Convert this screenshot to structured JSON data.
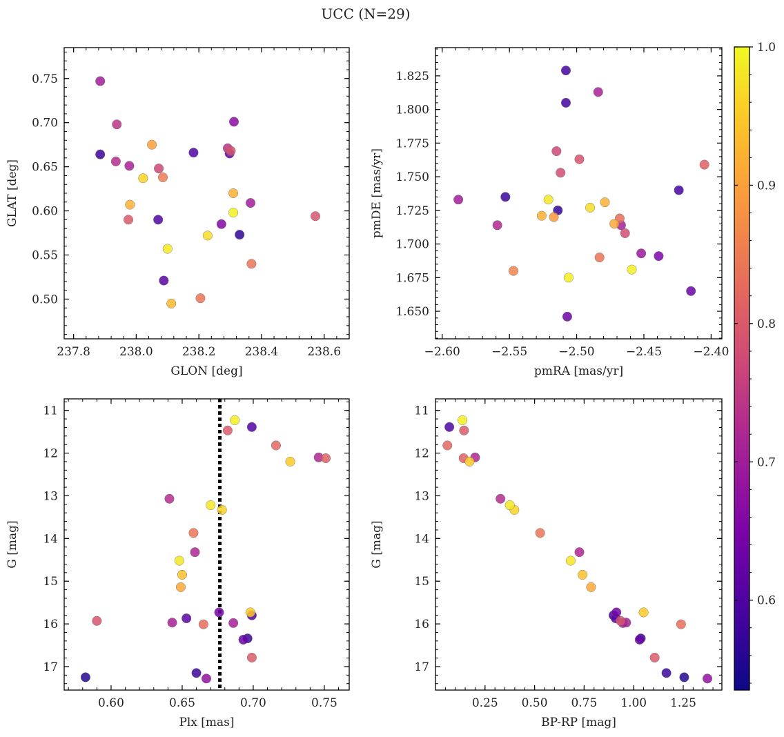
{
  "figure": {
    "title": "UCC (N=29)"
  },
  "chart_data": [
    {
      "id": "glon-glat",
      "type": "scatter",
      "xlabel": "GLON [deg]",
      "ylabel": "GLAT [deg]",
      "xlim": [
        237.77,
        238.68
      ],
      "ylim": [
        0.455,
        0.785
      ],
      "xticks": [
        237.8,
        238.0,
        238.2,
        238.4,
        238.6
      ],
      "xticklabels": [
        "237.8",
        "238.0",
        "238.2",
        "238.4",
        "238.6"
      ],
      "yticks": [
        0.5,
        0.55,
        0.6,
        0.65,
        0.7,
        0.75
      ],
      "yticklabels": [
        "0.50",
        "0.55",
        "0.60",
        "0.65",
        "0.70",
        "0.75"
      ],
      "y_inverted": false,
      "points": [
        {
          "x": 237.885,
          "y": 0.747,
          "c": 0.7
        },
        {
          "x": 237.885,
          "y": 0.664,
          "c": 0.58
        },
        {
          "x": 237.938,
          "y": 0.698,
          "c": 0.74
        },
        {
          "x": 237.935,
          "y": 0.656,
          "c": 0.73
        },
        {
          "x": 237.978,
          "y": 0.651,
          "c": 0.71
        },
        {
          "x": 237.975,
          "y": 0.59,
          "c": 0.8
        },
        {
          "x": 237.98,
          "y": 0.607,
          "c": 0.92
        },
        {
          "x": 238.022,
          "y": 0.637,
          "c": 0.96
        },
        {
          "x": 238.05,
          "y": 0.675,
          "c": 0.9
        },
        {
          "x": 238.072,
          "y": 0.648,
          "c": 0.77
        },
        {
          "x": 238.085,
          "y": 0.638,
          "c": 0.85
        },
        {
          "x": 238.07,
          "y": 0.59,
          "c": 0.6
        },
        {
          "x": 238.1,
          "y": 0.557,
          "c": 0.98
        },
        {
          "x": 238.088,
          "y": 0.521,
          "c": 0.61
        },
        {
          "x": 238.112,
          "y": 0.495,
          "c": 0.93
        },
        {
          "x": 238.183,
          "y": 0.666,
          "c": 0.6
        },
        {
          "x": 238.205,
          "y": 0.501,
          "c": 0.84
        },
        {
          "x": 238.228,
          "y": 0.572,
          "c": 0.97
        },
        {
          "x": 238.272,
          "y": 0.585,
          "c": 0.66
        },
        {
          "x": 238.292,
          "y": 0.671,
          "c": 0.74
        },
        {
          "x": 238.298,
          "y": 0.665,
          "c": 0.62
        },
        {
          "x": 238.302,
          "y": 0.668,
          "c": 0.79
        },
        {
          "x": 238.312,
          "y": 0.701,
          "c": 0.67
        },
        {
          "x": 238.31,
          "y": 0.62,
          "c": 0.92
        },
        {
          "x": 238.31,
          "y": 0.598,
          "c": 0.99
        },
        {
          "x": 238.33,
          "y": 0.573,
          "c": 0.57
        },
        {
          "x": 238.365,
          "y": 0.609,
          "c": 0.7
        },
        {
          "x": 238.368,
          "y": 0.54,
          "c": 0.84
        },
        {
          "x": 238.572,
          "y": 0.594,
          "c": 0.79
        }
      ]
    },
    {
      "id": "pmra-pmde",
      "type": "scatter",
      "xlabel": "pmRA [mas/yr]",
      "ylabel": "pmDE [mas/yr]",
      "xlim": [
        -2.605,
        -2.392
      ],
      "ylim": [
        1.6295,
        1.846
      ],
      "xticks": [
        -2.6,
        -2.55,
        -2.5,
        -2.45,
        -2.4
      ],
      "xticklabels": [
        "−2.60",
        "−2.55",
        "−2.50",
        "−2.45",
        "−2.40"
      ],
      "yticks": [
        1.65,
        1.675,
        1.7,
        1.725,
        1.75,
        1.775,
        1.8,
        1.825
      ],
      "yticklabels": [
        "1.650",
        "1.675",
        "1.700",
        "1.725",
        "1.750",
        "1.775",
        "1.800",
        "1.825"
      ],
      "y_inverted": false,
      "points": [
        {
          "x": -2.508,
          "y": 1.829,
          "c": 0.59
        },
        {
          "x": -2.484,
          "y": 1.813,
          "c": 0.71
        },
        {
          "x": -2.508,
          "y": 1.805,
          "c": 0.59
        },
        {
          "x": -2.515,
          "y": 1.769,
          "c": 0.77
        },
        {
          "x": -2.498,
          "y": 1.763,
          "c": 0.79
        },
        {
          "x": -2.405,
          "y": 1.759,
          "c": 0.81
        },
        {
          "x": -2.512,
          "y": 1.753,
          "c": 0.78
        },
        {
          "x": -2.424,
          "y": 1.74,
          "c": 0.59
        },
        {
          "x": -2.553,
          "y": 1.735,
          "c": 0.58
        },
        {
          "x": -2.588,
          "y": 1.733,
          "c": 0.7
        },
        {
          "x": -2.521,
          "y": 1.733,
          "c": 0.98
        },
        {
          "x": -2.479,
          "y": 1.731,
          "c": 0.92
        },
        {
          "x": -2.49,
          "y": 1.727,
          "c": 0.97
        },
        {
          "x": -2.514,
          "y": 1.725,
          "c": 0.57
        },
        {
          "x": -2.526,
          "y": 1.721,
          "c": 0.92
        },
        {
          "x": -2.517,
          "y": 1.72,
          "c": 0.89
        },
        {
          "x": -2.468,
          "y": 1.719,
          "c": 0.83
        },
        {
          "x": -2.472,
          "y": 1.715,
          "c": 0.91
        },
        {
          "x": -2.559,
          "y": 1.714,
          "c": 0.72
        },
        {
          "x": -2.467,
          "y": 1.714,
          "c": 0.71
        },
        {
          "x": -2.464,
          "y": 1.708,
          "c": 0.78
        },
        {
          "x": -2.452,
          "y": 1.693,
          "c": 0.69
        },
        {
          "x": -2.439,
          "y": 1.691,
          "c": 0.65
        },
        {
          "x": -2.483,
          "y": 1.69,
          "c": 0.84
        },
        {
          "x": -2.459,
          "y": 1.681,
          "c": 0.99
        },
        {
          "x": -2.547,
          "y": 1.68,
          "c": 0.86
        },
        {
          "x": -2.506,
          "y": 1.675,
          "c": 0.99
        },
        {
          "x": -2.415,
          "y": 1.665,
          "c": 0.63
        },
        {
          "x": -2.507,
          "y": 1.646,
          "c": 0.63
        }
      ]
    },
    {
      "id": "plx-g",
      "type": "scatter",
      "xlabel": "Plx [mas]",
      "ylabel": "G [mag]",
      "xlim": [
        0.567,
        0.7675
      ],
      "ylim": [
        17.55,
        10.73
      ],
      "xticks": [
        0.6,
        0.65,
        0.7,
        0.75
      ],
      "xticklabels": [
        "0.60",
        "0.65",
        "0.70",
        "0.75"
      ],
      "yticks": [
        11,
        12,
        13,
        14,
        15,
        16,
        17
      ],
      "yticklabels": [
        "11",
        "12",
        "13",
        "14",
        "15",
        "16",
        "17"
      ],
      "y_inverted": true,
      "vline": 0.6765,
      "points": [
        {
          "x": 0.687,
          "y": 11.23,
          "c": 0.99
        },
        {
          "x": 0.699,
          "y": 11.39,
          "c": 0.6
        },
        {
          "x": 0.682,
          "y": 11.47,
          "c": 0.8
        },
        {
          "x": 0.716,
          "y": 11.82,
          "c": 0.82
        },
        {
          "x": 0.746,
          "y": 12.1,
          "c": 0.72
        },
        {
          "x": 0.751,
          "y": 12.12,
          "c": 0.81
        },
        {
          "x": 0.726,
          "y": 12.2,
          "c": 0.95
        },
        {
          "x": 0.641,
          "y": 13.07,
          "c": 0.73
        },
        {
          "x": 0.67,
          "y": 13.22,
          "c": 0.98
        },
        {
          "x": 0.678,
          "y": 13.33,
          "c": 0.96
        },
        {
          "x": 0.658,
          "y": 13.87,
          "c": 0.84
        },
        {
          "x": 0.659,
          "y": 14.32,
          "c": 0.72
        },
        {
          "x": 0.648,
          "y": 14.52,
          "c": 0.98
        },
        {
          "x": 0.65,
          "y": 14.85,
          "c": 0.94
        },
        {
          "x": 0.649,
          "y": 15.14,
          "c": 0.91
        },
        {
          "x": 0.698,
          "y": 15.73,
          "c": 0.95
        },
        {
          "x": 0.676,
          "y": 15.73,
          "c": 0.64
        },
        {
          "x": 0.699,
          "y": 15.8,
          "c": 0.6
        },
        {
          "x": 0.653,
          "y": 15.87,
          "c": 0.61
        },
        {
          "x": 0.59,
          "y": 15.93,
          "c": 0.79
        },
        {
          "x": 0.643,
          "y": 15.97,
          "c": 0.71
        },
        {
          "x": 0.686,
          "y": 15.98,
          "c": 0.71
        },
        {
          "x": 0.665,
          "y": 16.01,
          "c": 0.83
        },
        {
          "x": 0.696,
          "y": 16.34,
          "c": 0.58
        },
        {
          "x": 0.693,
          "y": 16.37,
          "c": 0.63
        },
        {
          "x": 0.699,
          "y": 16.79,
          "c": 0.8
        },
        {
          "x": 0.66,
          "y": 17.15,
          "c": 0.58
        },
        {
          "x": 0.582,
          "y": 17.25,
          "c": 0.56
        },
        {
          "x": 0.667,
          "y": 17.28,
          "c": 0.68
        }
      ]
    },
    {
      "id": "bprp-g",
      "type": "scatter",
      "xlabel": "BP-RP [mag]",
      "ylabel": "G [mag]",
      "xlim": [
        0.0,
        1.445
      ],
      "ylim": [
        17.55,
        10.73
      ],
      "xticks": [
        0.25,
        0.5,
        0.75,
        1.0,
        1.25
      ],
      "xticklabels": [
        "0.25",
        "0.50",
        "0.75",
        "1.00",
        "1.25"
      ],
      "yticks": [
        11,
        12,
        13,
        14,
        15,
        16,
        17
      ],
      "yticklabels": [
        "11",
        "12",
        "13",
        "14",
        "15",
        "16",
        "17"
      ],
      "y_inverted": true,
      "points": [
        {
          "x": 0.136,
          "y": 11.23,
          "c": 0.99
        },
        {
          "x": 0.07,
          "y": 11.39,
          "c": 0.6
        },
        {
          "x": 0.144,
          "y": 11.47,
          "c": 0.8
        },
        {
          "x": 0.06,
          "y": 11.82,
          "c": 0.82
        },
        {
          "x": 0.2,
          "y": 12.1,
          "c": 0.72
        },
        {
          "x": 0.142,
          "y": 12.12,
          "c": 0.81
        },
        {
          "x": 0.172,
          "y": 12.2,
          "c": 0.95
        },
        {
          "x": 0.328,
          "y": 13.07,
          "c": 0.73
        },
        {
          "x": 0.375,
          "y": 13.22,
          "c": 0.98
        },
        {
          "x": 0.398,
          "y": 13.33,
          "c": 0.96
        },
        {
          "x": 0.528,
          "y": 13.87,
          "c": 0.84
        },
        {
          "x": 0.726,
          "y": 14.32,
          "c": 0.72
        },
        {
          "x": 0.682,
          "y": 14.52,
          "c": 0.98
        },
        {
          "x": 0.742,
          "y": 14.85,
          "c": 0.94
        },
        {
          "x": 0.785,
          "y": 15.14,
          "c": 0.91
        },
        {
          "x": 1.05,
          "y": 15.73,
          "c": 0.95
        },
        {
          "x": 0.913,
          "y": 15.73,
          "c": 0.64
        },
        {
          "x": 0.898,
          "y": 15.8,
          "c": 0.6
        },
        {
          "x": 0.909,
          "y": 15.87,
          "c": 0.61
        },
        {
          "x": 0.934,
          "y": 15.93,
          "c": 0.79
        },
        {
          "x": 0.962,
          "y": 15.97,
          "c": 0.71
        },
        {
          "x": 0.945,
          "y": 15.98,
          "c": 0.71
        },
        {
          "x": 1.239,
          "y": 16.01,
          "c": 0.83
        },
        {
          "x": 1.036,
          "y": 16.34,
          "c": 0.58
        },
        {
          "x": 1.03,
          "y": 16.37,
          "c": 0.63
        },
        {
          "x": 1.106,
          "y": 16.79,
          "c": 0.8
        },
        {
          "x": 1.165,
          "y": 17.15,
          "c": 0.58
        },
        {
          "x": 1.255,
          "y": 17.25,
          "c": 0.56
        },
        {
          "x": 1.372,
          "y": 17.28,
          "c": 0.68
        }
      ]
    }
  ],
  "colorbar": {
    "colormap": "plasma",
    "vmin": 0.535,
    "vmax": 1.0,
    "ticks": [
      0.6,
      0.7,
      0.8,
      0.9,
      1.0
    ],
    "ticklabels": [
      "0.6",
      "0.7",
      "0.8",
      "0.9",
      "1.0"
    ]
  }
}
